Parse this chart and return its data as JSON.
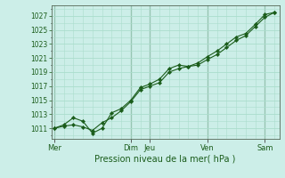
{
  "xlabel": "Pression niveau de la mer( hPa )",
  "bg_color": "#cceee8",
  "grid_color": "#aaddcc",
  "line_color": "#1a5c1a",
  "ylim": [
    1009.5,
    1028.5
  ],
  "yticks": [
    1011,
    1013,
    1015,
    1017,
    1019,
    1021,
    1023,
    1025,
    1027
  ],
  "day_labels": [
    "Mer",
    "Dim",
    "Jeu",
    "Ven",
    "Sam"
  ],
  "day_positions": [
    0,
    8,
    10,
    16,
    22
  ],
  "xlim": [
    -0.3,
    23.5
  ],
  "line1_x": [
    0,
    1,
    2,
    3,
    4,
    5,
    6,
    7,
    8,
    9,
    10,
    11,
    12,
    13,
    14,
    15,
    16,
    17,
    18,
    19,
    20,
    21,
    22,
    23
  ],
  "line1_y": [
    1011.0,
    1011.3,
    1011.5,
    1011.2,
    1010.7,
    1011.8,
    1012.5,
    1013.5,
    1014.8,
    1016.5,
    1017.0,
    1017.5,
    1019.0,
    1019.5,
    1019.8,
    1020.0,
    1020.8,
    1021.5,
    1022.5,
    1023.5,
    1024.2,
    1025.5,
    1026.8,
    1027.5
  ],
  "line2_x": [
    0,
    1,
    2,
    3,
    4,
    5,
    6,
    7,
    8,
    9,
    10,
    11,
    12,
    13,
    14,
    15,
    16,
    17,
    18,
    19,
    20,
    21,
    22,
    23
  ],
  "line2_y": [
    1011.0,
    1011.5,
    1012.5,
    1012.0,
    1010.3,
    1011.0,
    1013.2,
    1013.8,
    1015.0,
    1016.8,
    1017.3,
    1018.0,
    1019.5,
    1020.0,
    1019.8,
    1020.3,
    1021.2,
    1022.0,
    1023.0,
    1024.0,
    1024.5,
    1025.8,
    1027.2,
    1027.5
  ]
}
